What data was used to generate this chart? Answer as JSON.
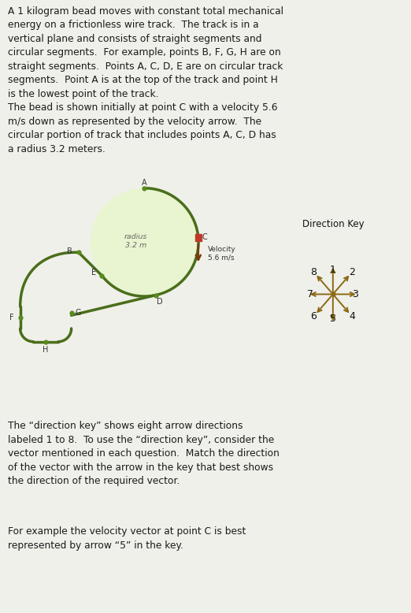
{
  "bg_color": "#f0f0eb",
  "track_color": "#4a6e1a",
  "circle_fill_color": "#e8f5d0",
  "track_linewidth": 2.5,
  "point_color": "#5a8a20",
  "bead_color": "#c0392b",
  "velocity_arrow_color": "#7a3a10",
  "direction_key_color": "#8B6914",
  "title_text": "A 1 kilogram bead moves with constant total mechanical\nenergy on a frictionless wire track.  The track is in a\nvertical plane and consists of straight segments and\ncircular segments.  For example, points B, F, G, H are on\nstraight segments.  Points A, C, D, E are on circular track\nsegments.  Point A is at the top of the track and point H\nis the lowest point of the track.\nThe bead is shown initially at point C with a velocity 5.6\nm/s down as represented by the velocity arrow.  The\ncircular portion of track that includes points A, C, D has\na radius 3.2 meters.",
  "bottom_text1": "The “direction key” shows eight arrow directions\nlabeled 1 to 8.  To use the “direction key”, consider the\nvector mentioned in each question.  Match the direction\nof the vector with the arrow in the key that best shows\nthe direction of the required vector.",
  "bottom_text2": "For example the velocity vector at point C is best\nrepresented by arrow “5” in the key."
}
